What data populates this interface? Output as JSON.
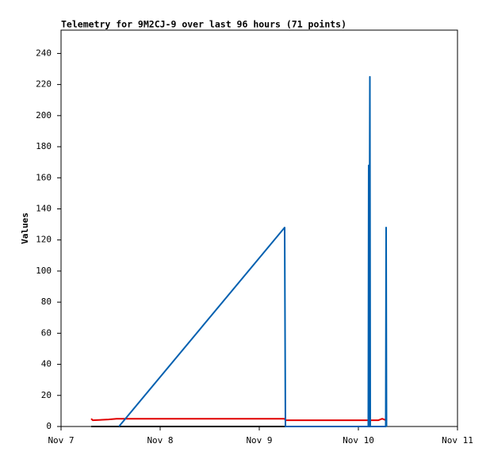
{
  "chart_data": {
    "type": "line",
    "title": "Telemetry for 9M2CJ-9 over last 96 hours (71 points)",
    "y_label": "Values",
    "xlim": [
      0,
      4
    ],
    "xticks": [
      {
        "value": 0,
        "label": "Nov 7"
      },
      {
        "value": 1,
        "label": "Nov 8"
      },
      {
        "value": 2,
        "label": "Nov 9"
      },
      {
        "value": 3,
        "label": "Nov 10"
      },
      {
        "value": 4,
        "label": "Nov 11"
      }
    ],
    "ylim": [
      0,
      255
    ],
    "yticks": [
      0,
      20,
      40,
      60,
      80,
      100,
      120,
      140,
      160,
      180,
      200,
      220,
      240
    ],
    "grid": false,
    "series": [
      {
        "color": "#000000",
        "x": [
          0.304,
          3.28
        ],
        "values": [
          0,
          0
        ]
      },
      {
        "color": "#e00000",
        "x": [
          0.304,
          0.32,
          0.48,
          0.56,
          2.256,
          2.264,
          3.2,
          3.24,
          3.26,
          3.28
        ],
        "values": [
          5,
          4,
          4.5,
          5,
          5,
          4,
          4,
          5,
          4.5,
          4
        ]
      },
      {
        "color": "#0060b0",
        "x": [
          0.584,
          2.256,
          2.264,
          3.1,
          3.104,
          3.108,
          3.116,
          3.12,
          3.276,
          3.28,
          3.284
        ],
        "values": [
          0,
          128,
          0,
          0,
          168,
          0,
          225,
          0,
          0,
          128,
          0
        ]
      }
    ]
  }
}
